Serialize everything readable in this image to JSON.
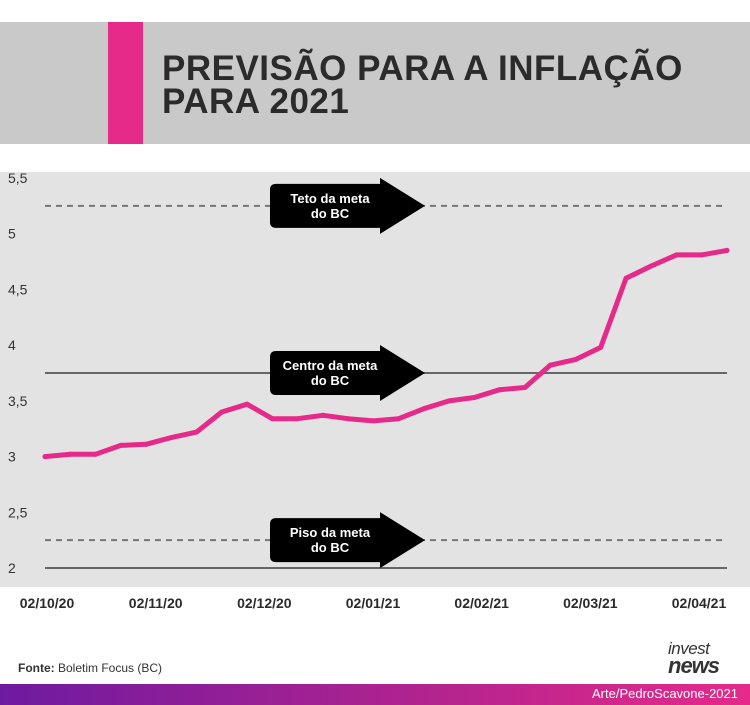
{
  "title_line1": "PREVISÃO PARA A INFLAÇÃO",
  "title_line2": "PARA 2021",
  "source_label": "Fonte:",
  "source_text": "Boletim Focus (BC)",
  "logo_line1": "invest",
  "logo_line2": "news",
  "credit": "Arte/PedroScavone-2021",
  "colors": {
    "accent": "#e52a8a",
    "header_bg": "#c9c9c9",
    "plot_bg": "#e3e3e3",
    "footer_start": "#6e1aa0",
    "footer_end": "#e52a8a"
  },
  "chart_data": {
    "type": "line",
    "ylim": [
      2,
      5.5
    ],
    "yticks": [
      2,
      2.5,
      3,
      3.5,
      4,
      4.5,
      5,
      5.5
    ],
    "ytick_labels": [
      "2",
      "2,5",
      "3",
      "3,5",
      "4",
      "4,5",
      "5",
      "5,5"
    ],
    "xtick_labels": [
      "02/10/20",
      "02/11/20",
      "02/12/20",
      "02/01/21",
      "02/02/21",
      "02/03/21",
      "02/04/21"
    ],
    "series": [
      {
        "color": "#e52a8a",
        "x": [
          "2020-10-02",
          "2020-10-09",
          "2020-10-16",
          "2020-10-23",
          "2020-10-30",
          "2020-11-06",
          "2020-11-13",
          "2020-11-20",
          "2020-11-27",
          "2020-12-04",
          "2020-12-11",
          "2020-12-18",
          "2020-12-25",
          "2021-01-01",
          "2021-01-08",
          "2021-01-15",
          "2021-01-22",
          "2021-01-29",
          "2021-02-05",
          "2021-02-12",
          "2021-02-19",
          "2021-02-26",
          "2021-03-05",
          "2021-03-12",
          "2021-03-19",
          "2021-03-26",
          "2021-04-02",
          "2021-04-09"
        ],
        "values": [
          3.0,
          3.02,
          3.02,
          3.1,
          3.11,
          3.17,
          3.22,
          3.4,
          3.47,
          3.34,
          3.34,
          3.37,
          3.34,
          3.32,
          3.34,
          3.43,
          3.5,
          3.53,
          3.6,
          3.62,
          3.82,
          3.87,
          3.98,
          4.6,
          4.71,
          4.81,
          4.81,
          4.85
        ]
      }
    ],
    "reference_lines": [
      {
        "value": 5.25,
        "style": "dashed",
        "label_line1": "Teto da meta",
        "label_line2": "do BC"
      },
      {
        "value": 3.75,
        "style": "solid",
        "label_line1": "Centro da meta",
        "label_line2": "do BC"
      },
      {
        "value": 2.25,
        "style": "dashed",
        "label_line1": "Piso da meta",
        "label_line2": "do BC"
      }
    ],
    "grid": false
  }
}
